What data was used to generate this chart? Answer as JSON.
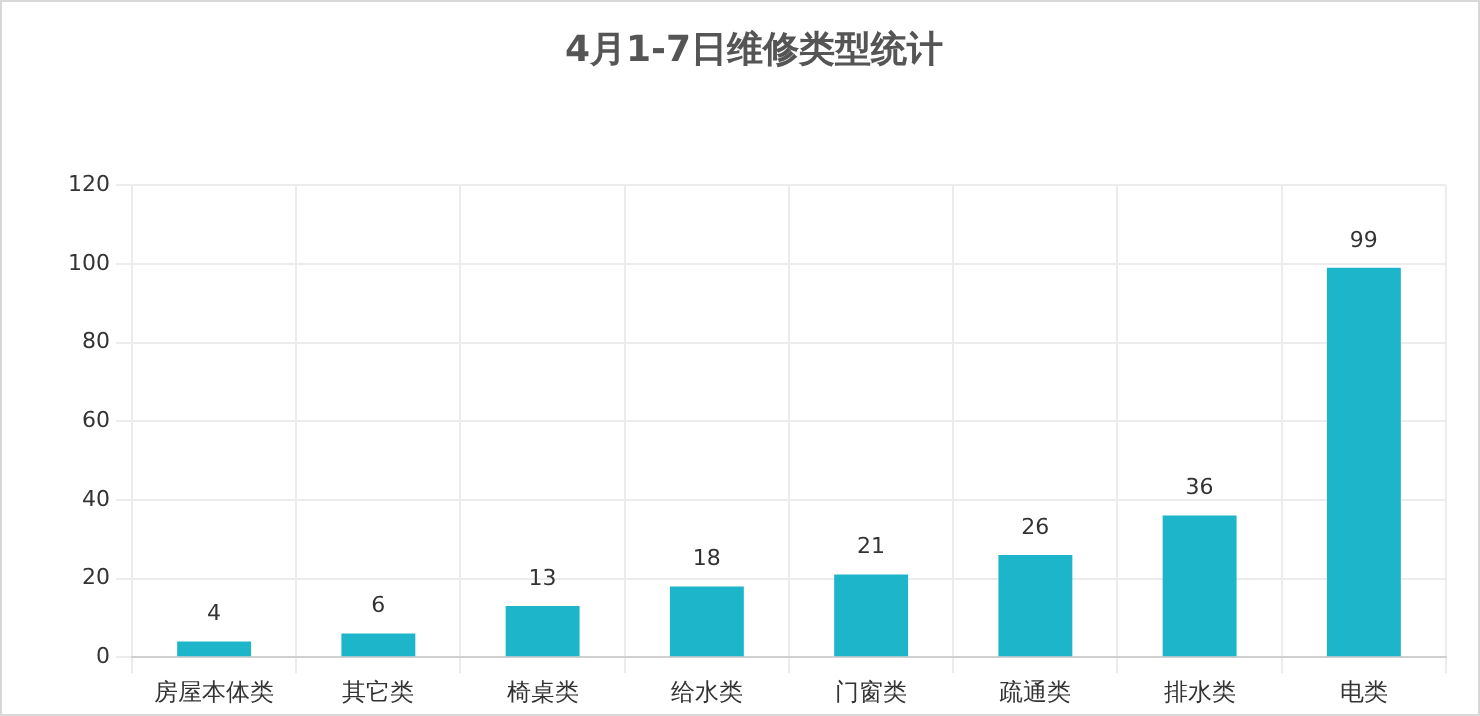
{
  "chart_data": {
    "type": "bar",
    "title": "4月1-7日维修类型统计",
    "categories": [
      "房屋本体类",
      "其它类",
      "椅桌类",
      "给水类",
      "门窗类",
      "疏通类",
      "排水类",
      "电类"
    ],
    "values": [
      4,
      6,
      13,
      18,
      21,
      26,
      36,
      99
    ],
    "color": "#1db5c9",
    "ylim": [
      0,
      120
    ],
    "yticks": [
      0,
      20,
      40,
      60,
      80,
      100,
      120
    ],
    "grid": true,
    "data_labels": true,
    "legend": false
  }
}
